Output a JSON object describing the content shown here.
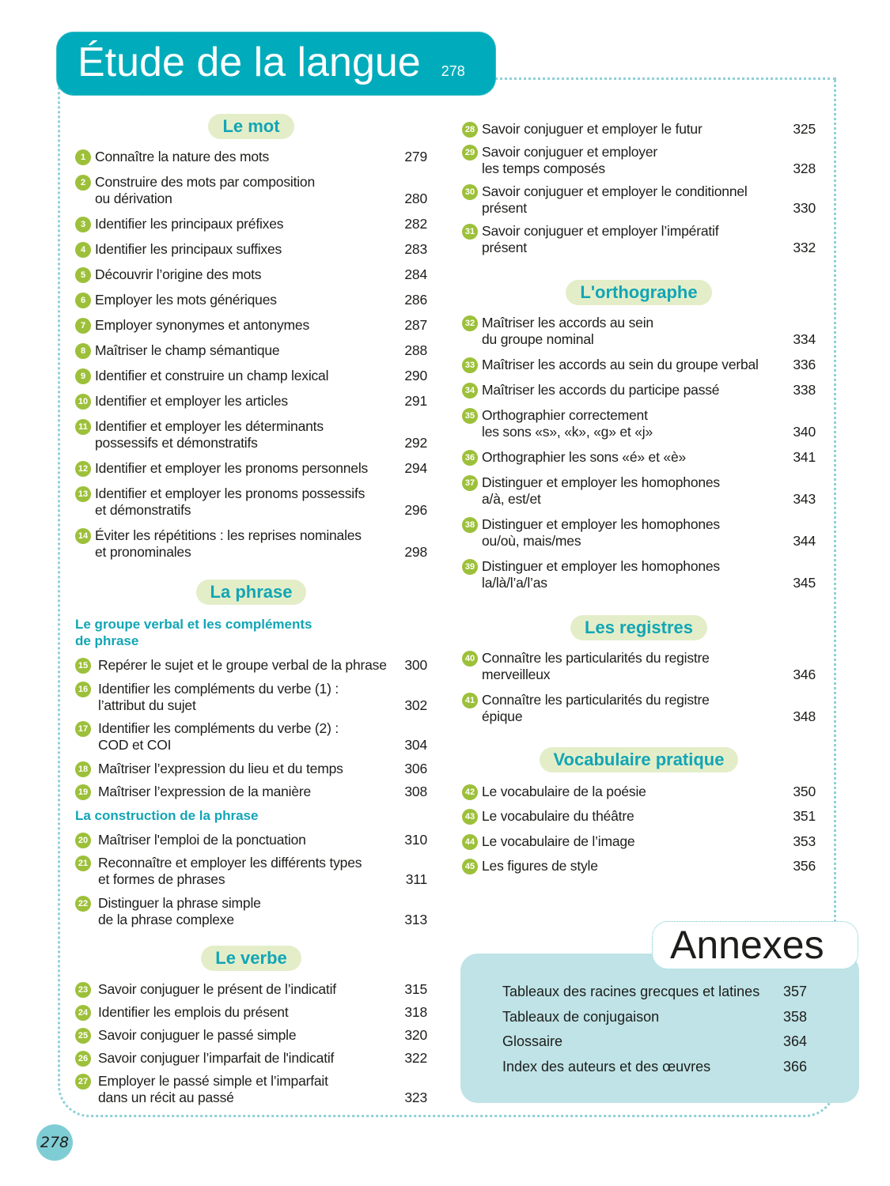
{
  "header": {
    "title": "Étude de la langue",
    "page": "278"
  },
  "colors": {
    "accent": "#00acbb",
    "badge": "#9dc03a",
    "pill_bg": "#e3eec9",
    "annex_bg": "#bfe3e6"
  },
  "left": [
    {
      "pill": "Le mot",
      "gap": 11,
      "items": [
        {
          "n": "1",
          "t": "Connaître la nature des mots",
          "p": "279"
        },
        {
          "n": "2",
          "t": "Construire des mots par composition\nou dérivation",
          "p": "280"
        },
        {
          "n": "3",
          "t": "Identifier les principaux préfixes",
          "p": "282"
        },
        {
          "n": "4",
          "t": "Identifier les principaux suffixes",
          "p": "283"
        },
        {
          "n": "5",
          "t": "Découvrir l’origine des mots",
          "p": "284"
        },
        {
          "n": "6",
          "t": "Employer les mots génériques",
          "p": "286"
        },
        {
          "n": "7",
          "t": "Employer synonymes et antonymes",
          "p": "287"
        },
        {
          "n": "8",
          "t": "Maîtriser le champ sémantique",
          "p": "288"
        },
        {
          "n": "9",
          "t": "Identifier et construire un champ lexical",
          "p": "290"
        },
        {
          "n": "10",
          "t": "Identifier et employer les articles",
          "p": "291"
        },
        {
          "n": "11",
          "t": "Identifier et employer les déterminants\npossessifs et démonstratifs",
          "p": "292"
        },
        {
          "n": "12",
          "t": "Identifier et employer les pronoms personnels",
          "p": "294"
        },
        {
          "n": "13",
          "t": "Identifier et employer les pronoms possessifs\net démonstratifs",
          "p": "296"
        },
        {
          "n": "14",
          "t": "Éviter les répétitions : les reprises nominales\net pronominales",
          "p": "298"
        }
      ]
    },
    {
      "pill": "La phrase",
      "gap": 8.5,
      "indent": true,
      "groups": [
        {
          "sub": "Le groupe verbal et les compléments\nde phrase",
          "items": [
            {
              "n": "15",
              "t": "Repérer le sujet et le groupe verbal de la phrase",
              "p": "300"
            },
            {
              "n": "16",
              "t": "Identifier les compléments du verbe (1) :\nl’attribut du sujet",
              "p": "302"
            },
            {
              "n": "17",
              "t": "Identifier les compléments du verbe (2) :\nCOD et COI",
              "p": "304"
            },
            {
              "n": "18",
              "t": "Maîtriser l’expression du lieu et du temps",
              "p": "306"
            },
            {
              "n": "19",
              "t": "Maîtriser l’expression de la manière",
              "p": "308"
            }
          ]
        },
        {
          "sub": "La construction de la phrase",
          "items": [
            {
              "n": "20",
              "t": "Maîtriser l'emploi de la ponctuation",
              "p": "310"
            },
            {
              "n": "21",
              "t": "Reconnaître et employer les différents types\net formes de phrases",
              "p": "311"
            },
            {
              "n": "22",
              "t": "Distinguer la phrase simple\nde la phrase complexe",
              "p": "313"
            }
          ]
        }
      ]
    },
    {
      "pill": "Le verbe",
      "gap": 8,
      "indent": true,
      "items": [
        {
          "n": "23",
          "t": "Savoir conjuguer le présent de l’indicatif",
          "p": "315"
        },
        {
          "n": "24",
          "t": "Identifier les emplois du présent",
          "p": "318"
        },
        {
          "n": "25",
          "t": "Savoir conjuguer le passé simple",
          "p": "320"
        },
        {
          "n": "26",
          "t": "Savoir conjuguer l’imparfait de l'indicatif",
          "p": "322"
        },
        {
          "n": "27",
          "t": "Employer le passé simple et l’imparfait\ndans un récit au passé",
          "p": "323"
        }
      ]
    }
  ],
  "right": [
    {
      "pill": "",
      "gap": 8,
      "items": [
        {
          "n": "28",
          "t": "Savoir conjuguer et employer le futur",
          "p": "325"
        },
        {
          "n": "29",
          "t": "Savoir conjuguer et employer\nles temps composés",
          "p": "328"
        },
        {
          "n": "30",
          "t": "Savoir conjuguer et employer le conditionnel\nprésent",
          "p": "330"
        },
        {
          "n": "31",
          "t": "Savoir conjuguer et employer l’impératif\nprésent",
          "p": "332"
        }
      ]
    },
    {
      "pill": "L'orthographe",
      "gap": 11,
      "items": [
        {
          "n": "32",
          "t": "Maîtriser les accords au sein\ndu groupe nominal",
          "p": "334"
        },
        {
          "n": "33",
          "t": "Maîtriser les accords au sein du groupe verbal",
          "p": "336"
        },
        {
          "n": "34",
          "t": "Maîtriser les accords du participe passé",
          "p": "338"
        },
        {
          "n": "35",
          "t": "Orthographier correctement\nles sons «s», «k», «g» et «j»",
          "p": "340"
        },
        {
          "n": "36",
          "t": "Orthographier les sons «é» et «è»",
          "p": "341"
        },
        {
          "n": "37",
          "t": "Distinguer et employer les homophones\na/à, est/et",
          "p": "343"
        },
        {
          "n": "38",
          "t": "Distinguer et employer les homophones\nou/où, mais/mes",
          "p": "344"
        },
        {
          "n": "39",
          "t": "Distinguer et employer les homophones\nla/là/l’a/l’as",
          "p": "345"
        }
      ]
    },
    {
      "pill": "Les registres",
      "gap": 10.5,
      "items": [
        {
          "n": "40",
          "t": "Connaître les particularités du registre\nmerveilleux",
          "p": "346"
        },
        {
          "n": "41",
          "t": "Connaître les particularités du registre\népique",
          "p": "348"
        }
      ]
    },
    {
      "pill": "Vocabulaire pratique",
      "gap": 10.5,
      "items": [
        {
          "n": "42",
          "t": "Le vocabulaire de la poésie",
          "p": "350"
        },
        {
          "n": "43",
          "t": "Le vocabulaire du théâtre",
          "p": "351"
        },
        {
          "n": "44",
          "t": "Le vocabulaire de l’image",
          "p": "353"
        },
        {
          "n": "45",
          "t": "Les figures de style",
          "p": "356"
        }
      ]
    }
  ],
  "annexes": {
    "title": "Annexes",
    "items": [
      {
        "t": "Tableaux des racines grecques et latines",
        "p": "357"
      },
      {
        "t": "Tableaux de conjugaison",
        "p": "358"
      },
      {
        "t": "Glossaire",
        "p": "364"
      },
      {
        "t": "Index des auteurs et des œuvres",
        "p": "366"
      }
    ]
  },
  "footer": {
    "page": "278"
  }
}
